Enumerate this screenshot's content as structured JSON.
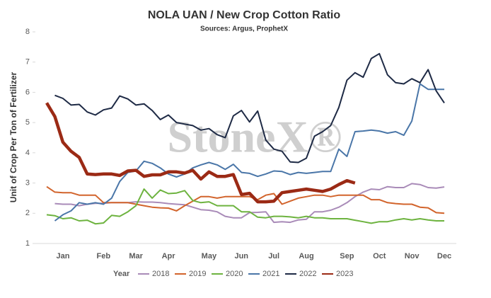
{
  "chart_data": {
    "type": "line",
    "title": "NOLA UAN / New Crop Cotton Ratio",
    "subtitle": "Sources: Argus, ProphetX",
    "y_label": "Unit of Crop Per Ton of Fertilizer",
    "watermark": "StoneX®",
    "legend_title": "Year",
    "categories": [
      null,
      null,
      "Jan",
      null,
      null,
      null,
      null,
      "Feb",
      null,
      null,
      null,
      "Mar",
      null,
      null,
      null,
      "Apr",
      null,
      null,
      null,
      null,
      "May",
      null,
      null,
      null,
      "Jun",
      null,
      null,
      null,
      "Jul",
      null,
      null,
      null,
      "Aug",
      null,
      null,
      null,
      null,
      "Sep",
      null,
      null,
      null,
      "Oct",
      null,
      null,
      null,
      "Nov",
      null,
      null,
      null,
      "Dec"
    ],
    "ylim": [
      1,
      8
    ],
    "yticks": [
      1,
      2,
      3,
      4,
      5,
      6,
      7,
      8
    ],
    "grid": false,
    "series": [
      {
        "name": "2018",
        "color": "#a98bb8",
        "width": 2,
        "values": [
          null,
          2.32,
          2.3,
          2.3,
          2.25,
          2.3,
          2.33,
          2.33,
          2.35,
          2.35,
          2.35,
          2.38,
          2.37,
          2.37,
          2.35,
          2.32,
          2.3,
          2.28,
          2.2,
          2.12,
          2.1,
          2.05,
          1.9,
          1.85,
          1.85,
          2.02,
          2.03,
          2.05,
          1.7,
          1.72,
          1.7,
          1.78,
          1.8,
          2.05,
          2.05,
          2.1,
          2.2,
          2.35,
          2.55,
          2.7,
          2.8,
          2.78,
          2.88,
          2.85,
          2.85,
          2.98,
          2.95,
          2.85,
          2.83,
          2.87
        ]
      },
      {
        "name": "2019",
        "color": "#d2642c",
        "width": 2,
        "values": [
          2.88,
          2.7,
          2.68,
          2.68,
          2.6,
          2.6,
          2.6,
          2.35,
          2.35,
          2.35,
          2.35,
          2.3,
          2.25,
          2.2,
          2.18,
          2.17,
          2.08,
          2.25,
          2.4,
          2.55,
          2.55,
          2.5,
          2.55,
          2.55,
          2.55,
          2.55,
          2.45,
          2.6,
          2.65,
          2.3,
          2.4,
          2.5,
          2.55,
          2.6,
          2.6,
          2.55,
          2.6,
          2.6,
          2.6,
          2.6,
          2.45,
          2.45,
          2.35,
          2.32,
          2.3,
          2.3,
          2.2,
          2.18,
          2.02,
          2.0
        ]
      },
      {
        "name": "2020",
        "color": "#6db33f",
        "width": 2,
        "values": [
          1.95,
          1.92,
          1.82,
          1.85,
          1.75,
          1.77,
          1.65,
          1.68,
          1.93,
          1.9,
          2.05,
          2.25,
          2.8,
          2.5,
          2.77,
          2.65,
          2.67,
          2.75,
          2.42,
          2.35,
          2.38,
          2.25,
          2.25,
          2.25,
          2.05,
          2.05,
          1.87,
          1.85,
          1.9,
          1.9,
          1.88,
          1.85,
          1.9,
          1.85,
          1.85,
          1.82,
          1.82,
          1.82,
          1.77,
          1.72,
          1.67,
          1.72,
          1.72,
          1.78,
          1.82,
          1.78,
          1.82,
          1.78,
          1.75,
          1.75
        ]
      },
      {
        "name": "2021",
        "color": "#4a76a8",
        "width": 2,
        "values": [
          null,
          1.75,
          1.95,
          2.08,
          2.35,
          2.3,
          2.35,
          2.3,
          2.5,
          3.05,
          3.35,
          3.4,
          3.72,
          3.65,
          3.5,
          3.3,
          3.2,
          3.3,
          3.5,
          3.6,
          3.68,
          3.6,
          3.45,
          3.62,
          3.35,
          3.32,
          3.22,
          3.3,
          3.4,
          3.38,
          3.28,
          3.35,
          3.32,
          3.35,
          3.38,
          3.38,
          4.12,
          3.88,
          4.7,
          4.72,
          4.75,
          4.72,
          4.65,
          4.7,
          4.58,
          5.05,
          6.28,
          6.1,
          6.1,
          6.1
        ]
      },
      {
        "name": "2022",
        "color": "#1e2a45",
        "width": 2,
        "values": [
          null,
          5.9,
          5.8,
          5.58,
          5.6,
          5.35,
          5.25,
          5.42,
          5.48,
          5.88,
          5.78,
          5.58,
          5.62,
          5.4,
          5.1,
          5.25,
          5.0,
          4.95,
          4.9,
          4.75,
          4.8,
          4.6,
          4.5,
          5.22,
          5.4,
          5.02,
          5.38,
          4.42,
          4.12,
          4.05,
          3.7,
          3.68,
          3.82,
          4.55,
          4.7,
          4.9,
          5.5,
          6.4,
          6.65,
          6.5,
          7.12,
          7.28,
          6.58,
          6.32,
          6.28,
          6.45,
          6.32,
          6.75,
          6.05,
          5.65
        ]
      },
      {
        "name": "2023",
        "color": "#9b2a15",
        "width": 4.5,
        "values": [
          5.65,
          5.2,
          4.35,
          4.05,
          3.85,
          3.3,
          3.28,
          3.3,
          3.3,
          3.25,
          3.4,
          3.42,
          3.22,
          3.27,
          3.27,
          3.37,
          3.37,
          3.33,
          3.42,
          3.13,
          3.37,
          3.22,
          3.22,
          3.28,
          2.62,
          2.66,
          2.38,
          2.38,
          2.4,
          2.68,
          2.72,
          2.76,
          2.8,
          2.76,
          2.72,
          2.8,
          2.95,
          3.08,
          3.0,
          null,
          null,
          null,
          null,
          null,
          null,
          null,
          null,
          null,
          null,
          null
        ]
      }
    ]
  }
}
